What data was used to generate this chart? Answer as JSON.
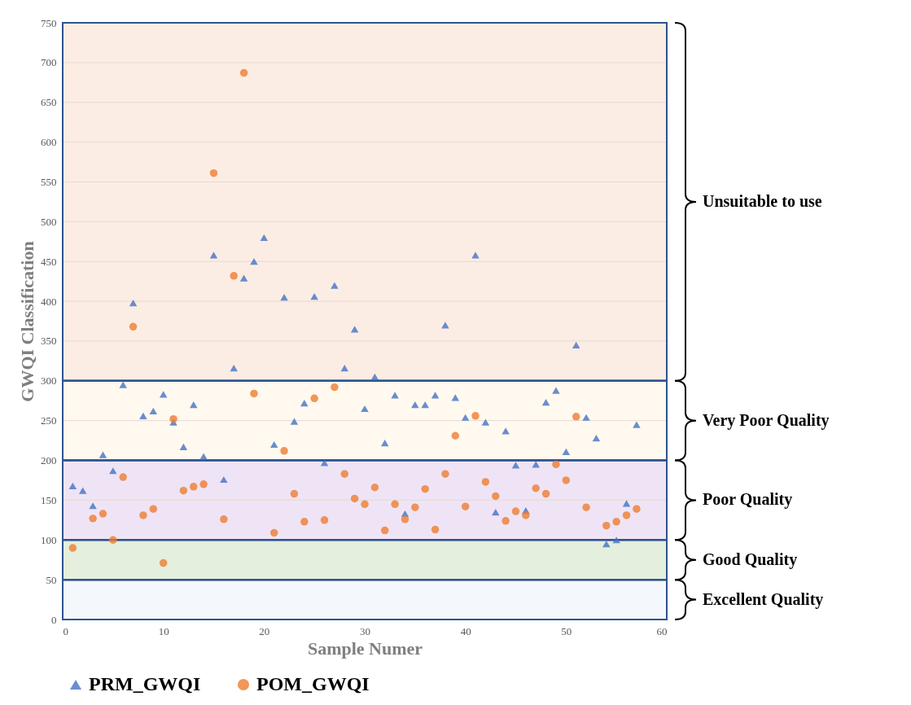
{
  "chart_data": {
    "type": "scatter",
    "xlabel": "Sample Numer",
    "ylabel": "GWQI Classification",
    "x": [
      1,
      2,
      3,
      4,
      5,
      6,
      7,
      8,
      9,
      10,
      11,
      12,
      13,
      14,
      15,
      16,
      17,
      18,
      19,
      20,
      21,
      22,
      23,
      24,
      25,
      26,
      27,
      28,
      29,
      30,
      31,
      32,
      33,
      34,
      35,
      36,
      37,
      38,
      39,
      40,
      41,
      42,
      43,
      44,
      45,
      46,
      47,
      48,
      49,
      50,
      51,
      52,
      53,
      54,
      55,
      56,
      57
    ],
    "series": [
      {
        "name": "PRM_GWQI",
        "color": "#4472c4",
        "marker": "triangle",
        "values": [
          168,
          162,
          143,
          207,
          187,
          295,
          398,
          256,
          262,
          283,
          248,
          217,
          270,
          205,
          458,
          176,
          316,
          429,
          450,
          480,
          220,
          405,
          249,
          272,
          406,
          197,
          420,
          316,
          365,
          265,
          305,
          222,
          282,
          133,
          270,
          270,
          282,
          370,
          279,
          254,
          458,
          248,
          135,
          237,
          194,
          137,
          195,
          273,
          288,
          211,
          345,
          254,
          228,
          95,
          100,
          146,
          245
        ]
      },
      {
        "name": "POM_GWQI",
        "color": "#ed7d31",
        "marker": "circle",
        "values": [
          90,
          null,
          127,
          133,
          100,
          179,
          368,
          131,
          139,
          71,
          252,
          162,
          167,
          170,
          561,
          126,
          432,
          687,
          284,
          null,
          109,
          212,
          158,
          123,
          278,
          125,
          292,
          183,
          152,
          145,
          166,
          112,
          145,
          126,
          141,
          164,
          113,
          183,
          231,
          142,
          256,
          173,
          155,
          124,
          136,
          131,
          165,
          158,
          195,
          175,
          255,
          141,
          null,
          118,
          123,
          131,
          139
        ]
      }
    ],
    "xlim": [
      0,
      60
    ],
    "xticks": [
      0,
      10,
      20,
      30,
      40,
      50,
      60
    ],
    "ylim": [
      0,
      750
    ],
    "yticks": [
      0,
      50,
      100,
      150,
      200,
      250,
      300,
      350,
      400,
      450,
      500,
      550,
      600,
      650,
      700,
      750
    ],
    "grid": "y",
    "legend": "bottom",
    "bands": [
      {
        "axis": "y",
        "from": 300,
        "to": 750,
        "label": "Unsuitable to use",
        "color": "#fcede4"
      },
      {
        "axis": "y",
        "from": 200,
        "to": 300,
        "label": "Very Poor Quality",
        "color": "#fff9ef"
      },
      {
        "axis": "y",
        "from": 100,
        "to": 200,
        "label": "Poor Quality",
        "color": "#efe4f6"
      },
      {
        "axis": "y",
        "from": 50,
        "to": 100,
        "label": "Good Quality",
        "color": "#e4efdd"
      },
      {
        "axis": "y",
        "from": 0,
        "to": 50,
        "label": "Excellent Quality",
        "color": "#f4f7fc"
      }
    ]
  }
}
